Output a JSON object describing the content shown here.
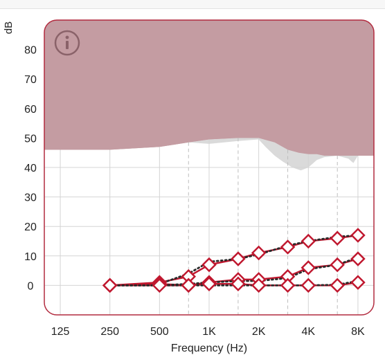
{
  "chart_data": {
    "type": "line",
    "ylabel": "dB",
    "xlabel": "Frequency (Hz)",
    "x_tick_labels": [
      "125",
      "250",
      "500",
      "1K",
      "2K",
      "4K",
      "8K"
    ],
    "x_tick_values": [
      125,
      250,
      500,
      1000,
      2000,
      4000,
      8000
    ],
    "y_tick_labels": [
      "80",
      "70",
      "60",
      "50",
      "40",
      "30",
      "20",
      "10",
      "0"
    ],
    "y_tick_values": [
      80,
      70,
      60,
      50,
      40,
      30,
      20,
      10,
      0
    ],
    "xlim": [
      100,
      10000
    ],
    "ylim": [
      -10,
      90
    ],
    "grid": true,
    "colors": {
      "shade": "#c49ca2",
      "frame": "#b22a3e",
      "series": "#c0182f",
      "target": "#2a2a2a",
      "speech": "#dadada",
      "grid": "#d4d4d4",
      "dashed_grid": "#bdbdbd"
    },
    "icon": "info-circle-icon",
    "shaded_region_lower_edge": {
      "x": [
        100,
        250,
        500,
        750,
        1000,
        1500,
        2000,
        2500,
        3000,
        3500,
        4000,
        4500,
        5000,
        6000,
        7000,
        8000,
        10000
      ],
      "y": [
        46,
        46,
        47,
        48.5,
        49.5,
        50,
        50,
        48.5,
        46,
        45,
        44.5,
        44.5,
        44,
        44,
        44,
        44,
        44
      ]
    },
    "speech_region": {
      "x": [
        750,
        1000,
        1500,
        2000,
        2200,
        2500,
        2800,
        3200,
        3600,
        4000,
        4500,
        5000,
        6000,
        7000,
        7500,
        8000
      ],
      "upper": [
        48.5,
        49.5,
        50,
        50,
        50,
        49,
        47.5,
        46,
        45,
        44.5,
        44.5,
        44,
        44,
        44,
        44,
        44
      ],
      "lower": [
        48.5,
        48,
        49,
        49.5,
        47,
        44,
        42,
        40,
        39,
        40,
        42.5,
        43.5,
        44,
        43,
        41.5,
        44
      ]
    },
    "series": [
      {
        "x": [
          250,
          500,
          750,
          1000,
          1500,
          2000,
          3000,
          4000,
          6000,
          8000
        ],
        "values": [
          0,
          1,
          3,
          7,
          9,
          11,
          13,
          15,
          16,
          17
        ]
      },
      {
        "x": [
          250,
          500,
          750,
          1000,
          1500,
          2000,
          3000,
          4000,
          6000,
          8000
        ],
        "values": [
          0,
          0.5,
          0,
          1,
          2,
          2,
          3,
          6,
          7,
          9
        ]
      },
      {
        "x": [
          250,
          500,
          750,
          1000,
          1500,
          2000,
          3000,
          4000,
          6000,
          8000
        ],
        "values": [
          0,
          0,
          0,
          0.5,
          0.5,
          0,
          0,
          0,
          0,
          1
        ]
      }
    ],
    "targets": [
      {
        "x": [
          500,
          750,
          1000,
          1500,
          2000,
          3000,
          4000,
          6000,
          8000
        ],
        "values": [
          0.5,
          4,
          8,
          9,
          10.5,
          13.5,
          15,
          16.5,
          17
        ]
      },
      {
        "x": [
          250,
          500,
          750,
          1000,
          1500,
          2000,
          3000,
          4000,
          6000,
          8000
        ],
        "values": [
          0,
          0,
          0.5,
          1,
          1.5,
          1.5,
          2.5,
          5.5,
          7,
          9.5
        ]
      },
      {
        "x": [
          250,
          500,
          750,
          1000,
          1500,
          2000,
          3000,
          4000,
          6000,
          8000
        ],
        "values": [
          0,
          0,
          0,
          0,
          0,
          0,
          0,
          0,
          0.2,
          1.5
        ]
      }
    ]
  }
}
